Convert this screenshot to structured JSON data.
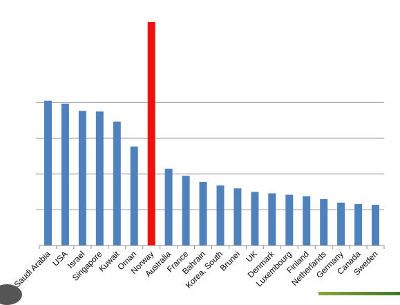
{
  "chart_data": {
    "type": "bar",
    "title": "",
    "xlabel": "",
    "ylabel": "",
    "categories": [
      "Saudi Arabia",
      "USA",
      "Israel",
      "Singapore",
      "Kuwait",
      "Oman",
      "Norway",
      "Australia",
      "France",
      "Bahrain",
      "Korea, South",
      "Brunei",
      "UK",
      "Denmark",
      "Luxembourg",
      "Finland",
      "Netherlands",
      "Germany",
      "Canada",
      "Sweden"
    ],
    "series": [
      {
        "values": [
          4.05,
          3.97,
          3.77,
          3.75,
          3.47,
          2.77,
          6.25,
          2.15,
          1.95,
          1.78,
          1.68,
          1.6,
          1.5,
          1.46,
          1.42,
          1.38,
          1.3,
          1.2,
          1.16,
          1.14
        ]
      }
    ],
    "highlight_index": 6,
    "ylim": [
      0,
      6.25
    ],
    "y_ticks": [
      0,
      1,
      2,
      3,
      4
    ],
    "y_tick_labels_shown": false,
    "grid": true,
    "colors": {
      "bar": "#4f81bd",
      "highlight": "#ee1111",
      "grid": "#8c8c8c",
      "axis": "#8c8c8c"
    }
  },
  "decorations": {
    "corner_badge_icon": "dark-circle-badge-icon",
    "logo_strip_icon": "green-logo-strip-icon"
  }
}
